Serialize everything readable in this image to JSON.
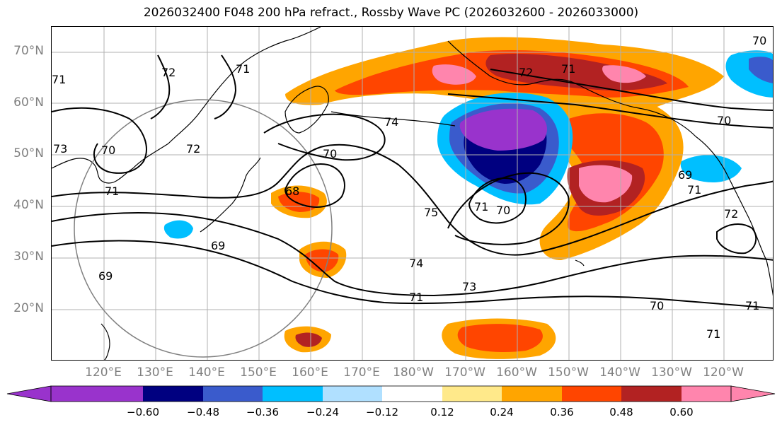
{
  "title": "2026032400 F048 200 hPa refract., Rossby Wave PC (2026032600 - 2026033000)",
  "map": {
    "projection": "mercator",
    "lon_range": [
      110,
      -112
    ],
    "lat_range": [
      10,
      75
    ],
    "gridlines": true,
    "lat_labels": [
      "70°N",
      "60°N",
      "50°N",
      "40°N",
      "30°N",
      "20°N"
    ],
    "lon_labels": [
      "120°E",
      "130°E",
      "140°E",
      "150°E",
      "160°E",
      "170°E",
      "180°W",
      "170°W",
      "160°W",
      "150°W",
      "140°W",
      "130°W",
      "120°W"
    ],
    "contour_labels": [
      "72",
      "71",
      "71",
      "73",
      "70",
      "72",
      "71",
      "68",
      "69",
      "69",
      "70",
      "74",
      "75",
      "71",
      "70",
      "74",
      "73",
      "71",
      "72",
      "71",
      "70",
      "69",
      "71",
      "72",
      "70",
      "71",
      "71",
      "70"
    ]
  },
  "colorbar": {
    "extend": "both",
    "ticks": [
      "−0.60",
      "−0.48",
      "−0.36",
      "−0.24",
      "−0.12",
      "0.12",
      "0.24",
      "0.36",
      "0.48",
      "0.60"
    ],
    "colors": [
      "#9933cc",
      "#000080",
      "#3a5bcc",
      "#00bfff",
      "#b0e0ff",
      "#ffffff",
      "#ffe98a",
      "#ffa500",
      "#ff4500",
      "#b22222",
      "#ff85ad",
      "#ff85ad"
    ]
  }
}
